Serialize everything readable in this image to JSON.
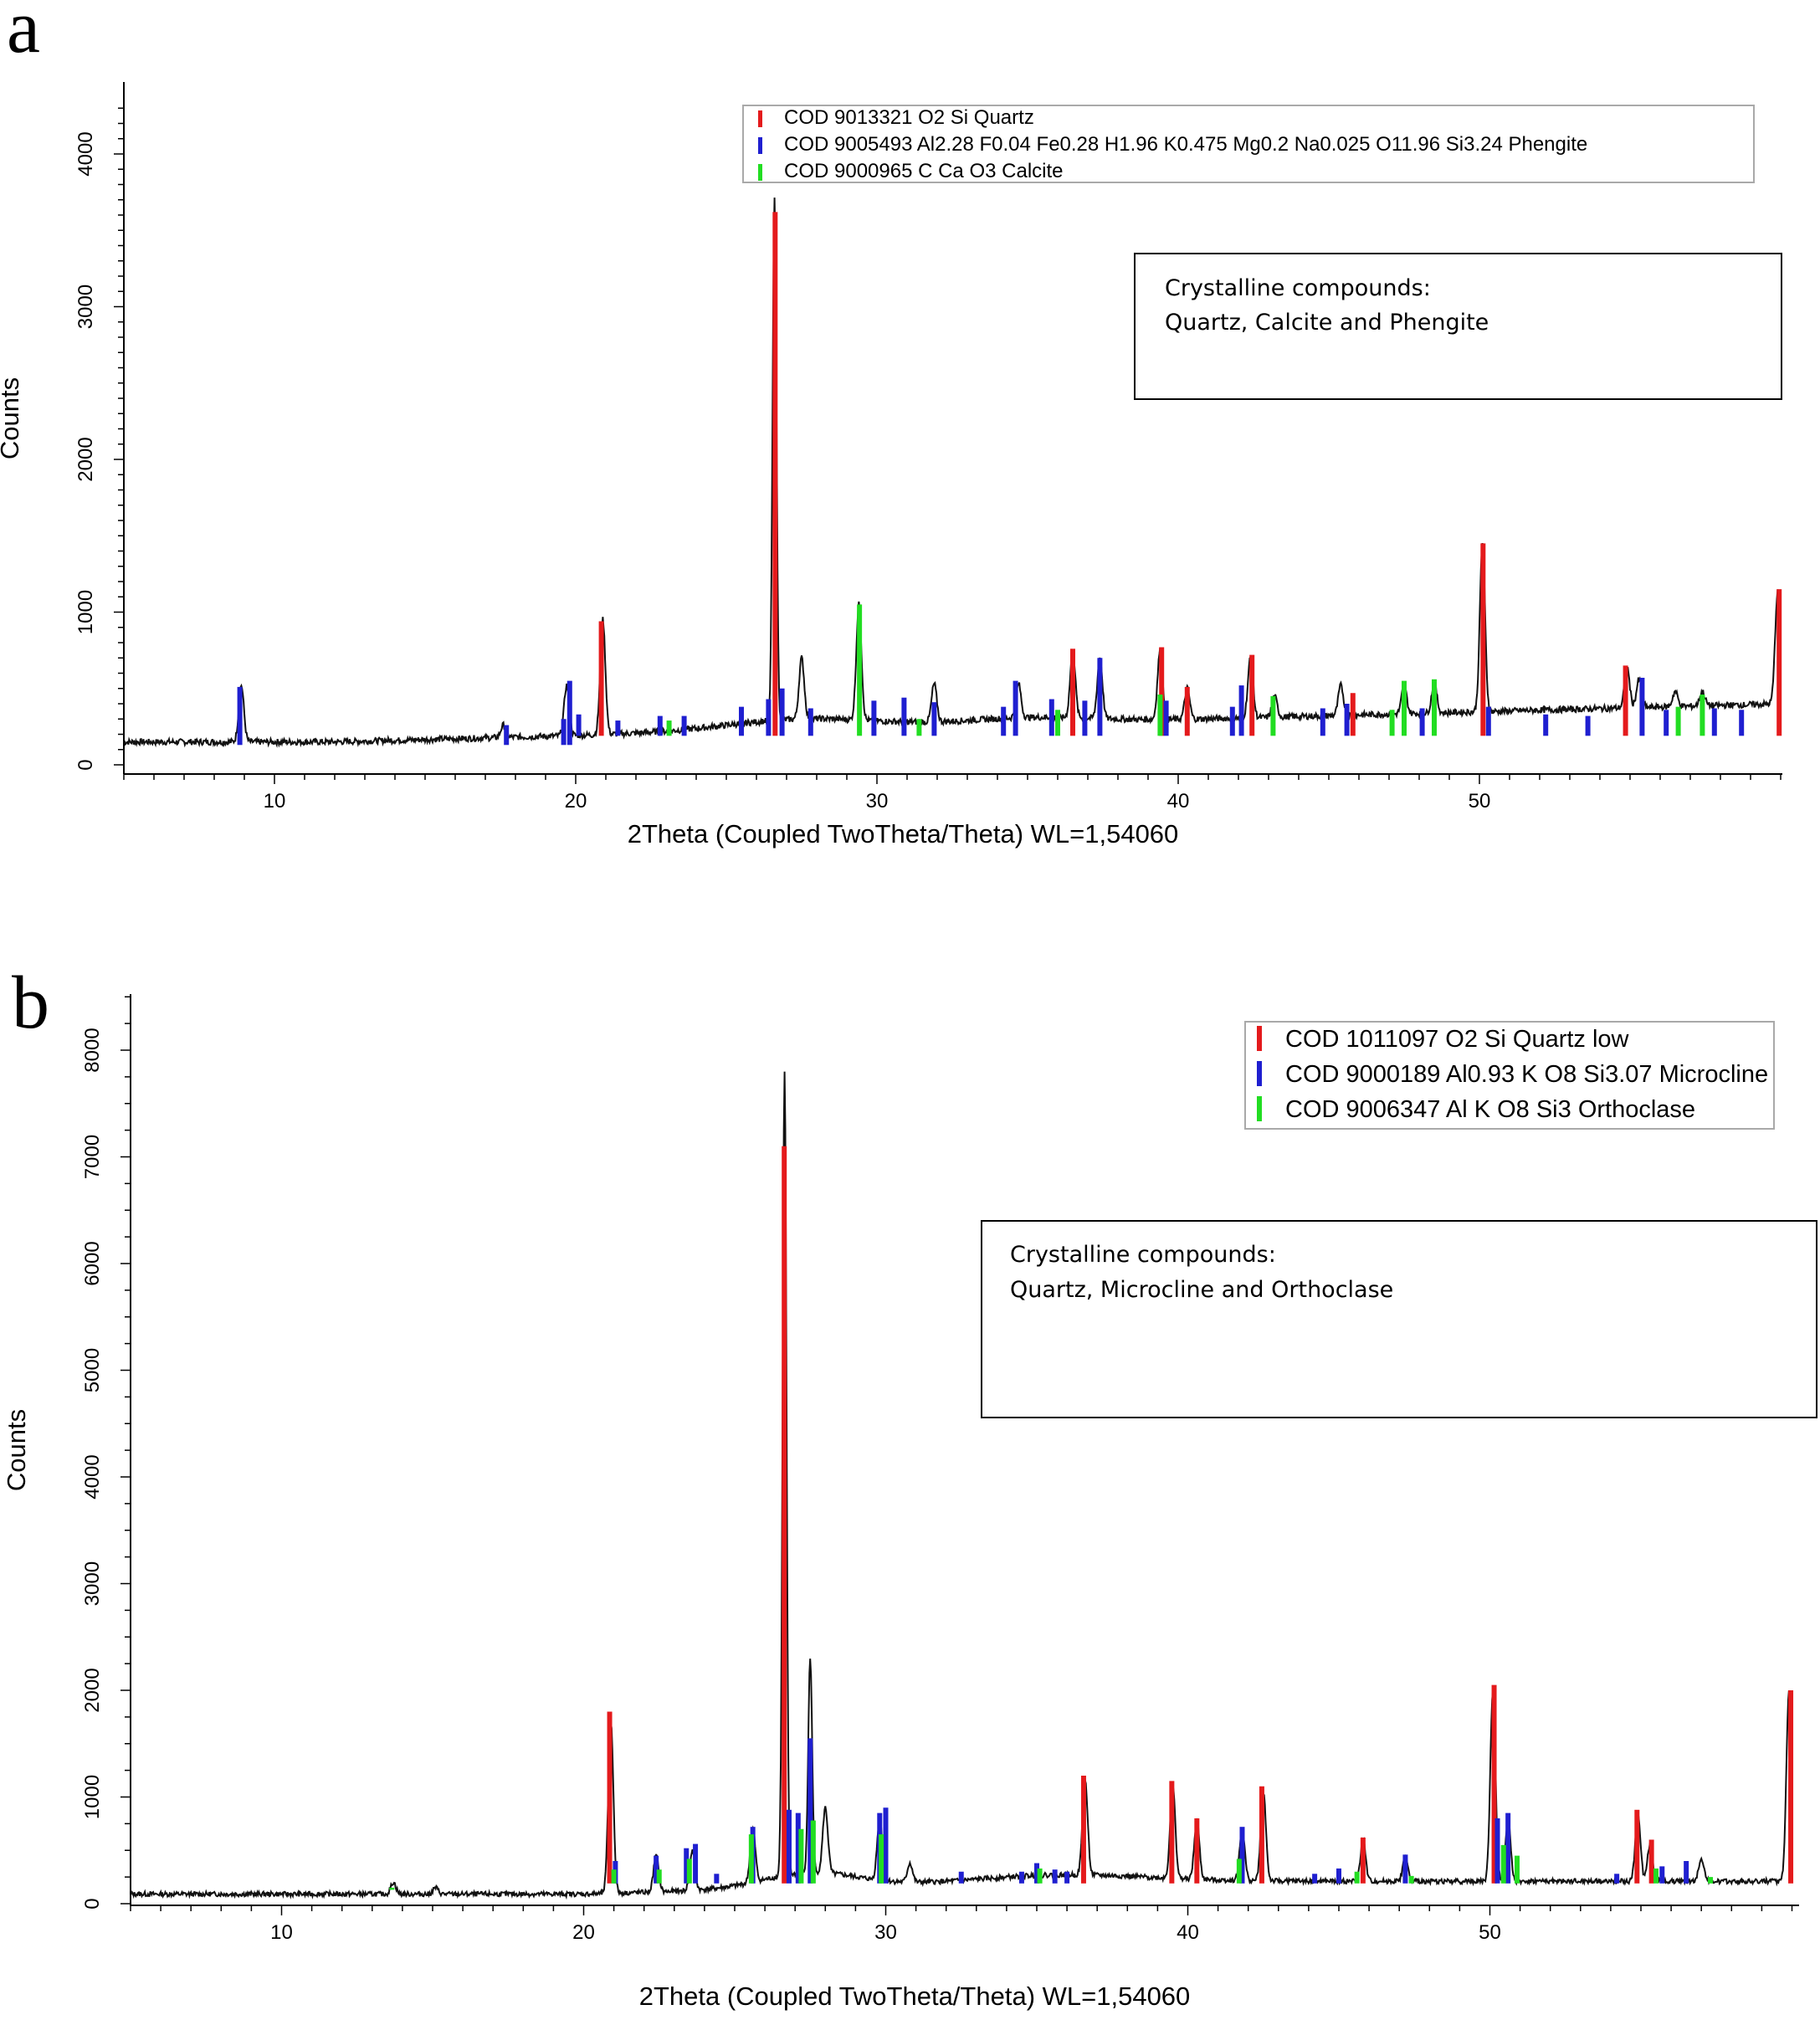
{
  "figure": {
    "panels": [
      {
        "letter": "a",
        "legend": [
          {
            "label": "COD 9013321 O2 Si Quartz",
            "color": "#e41a1c"
          },
          {
            "label": "COD 9005493 Al2.28 F0.04 Fe0.28 H1.96 K0.475 Mg0.2 Na0.025 O11.96 Si3.24 Phengite",
            "color": "#1f1fd0"
          },
          {
            "label": "COD 9000965 C Ca O3 Calcite",
            "color": "#22dd22"
          }
        ],
        "note": [
          "Crystalline compounds:",
          "Quartz, Calcite and Phengite"
        ]
      },
      {
        "letter": "b",
        "legend": [
          {
            "label": "COD 1011097 O2 Si Quartz low",
            "color": "#e41a1c"
          },
          {
            "label": "COD 9000189 Al0.93 K O8 Si3.07 Microcline",
            "color": "#1f1fd0"
          },
          {
            "label": "COD 9006347 Al K O8 Si3 Orthoclase",
            "color": "#22dd22"
          }
        ],
        "note": [
          "Crystalline compounds:",
          "Quartz, Microcline and Orthoclase"
        ]
      }
    ]
  },
  "chart_data": [
    {
      "type": "line",
      "xlabel": "2Theta (Coupled TwoTheta/Theta) WL=1,54060",
      "ylabel": "Counts",
      "xlim": [
        5,
        60
      ],
      "ylim": [
        0,
        4300
      ],
      "xticks": [
        10,
        20,
        30,
        40,
        50
      ],
      "yticks": [
        0,
        1000,
        2000,
        3000,
        4000
      ],
      "grid": false,
      "legend_position": "top-right",
      "pattern_peaks": [
        [
          8.9,
          520
        ],
        [
          17.6,
          260
        ],
        [
          19.7,
          520
        ],
        [
          20.9,
          950
        ],
        [
          26.6,
          3700
        ],
        [
          27.5,
          700
        ],
        [
          29.4,
          1050
        ],
        [
          31.9,
          530
        ],
        [
          34.7,
          530
        ],
        [
          36.5,
          750
        ],
        [
          37.4,
          700
        ],
        [
          39.4,
          750
        ],
        [
          40.3,
          500
        ],
        [
          42.4,
          700
        ],
        [
          43.2,
          450
        ],
        [
          45.4,
          520
        ],
        [
          47.5,
          520
        ],
        [
          48.5,
          540
        ],
        [
          50.1,
          1450
        ],
        [
          54.9,
          640
        ],
        [
          55.3,
          560
        ],
        [
          56.5,
          480
        ],
        [
          57.4,
          480
        ],
        [
          59.9,
          1130
        ]
      ],
      "series": [
        {
          "name": "COD 9013321 O2 Si Quartz",
          "color": "#e41a1c",
          "sticks": [
            [
              20.85,
              940
            ],
            [
              26.62,
              3620
            ],
            [
              36.5,
              760
            ],
            [
              39.45,
              770
            ],
            [
              40.3,
              510
            ],
            [
              42.45,
              720
            ],
            [
              45.8,
              470
            ],
            [
              50.12,
              1450
            ],
            [
              54.85,
              650
            ],
            [
              59.95,
              1150
            ]
          ]
        },
        {
          "name": "COD 9005493 Al2.28 F0.04 Fe0.28 H1.96 K0.475 Mg0.2 Na0.025 O11.96 Si3.24 Phengite",
          "color": "#1f1fd0",
          "sticks": [
            [
              8.85,
              510
            ],
            [
              17.7,
              260
            ],
            [
              19.6,
              300
            ],
            [
              19.8,
              550
            ],
            [
              20.1,
              330
            ],
            [
              21.4,
              290
            ],
            [
              22.8,
              320
            ],
            [
              23.6,
              320
            ],
            [
              25.5,
              380
            ],
            [
              26.4,
              430
            ],
            [
              26.85,
              500
            ],
            [
              27.8,
              370
            ],
            [
              29.9,
              420
            ],
            [
              30.9,
              440
            ],
            [
              31.9,
              410
            ],
            [
              34.2,
              380
            ],
            [
              34.6,
              550
            ],
            [
              35.8,
              430
            ],
            [
              36.9,
              420
            ],
            [
              37.4,
              700
            ],
            [
              39.6,
              420
            ],
            [
              41.8,
              380
            ],
            [
              42.1,
              520
            ],
            [
              44.8,
              370
            ],
            [
              45.6,
              400
            ],
            [
              48.1,
              370
            ],
            [
              50.3,
              380
            ],
            [
              52.2,
              330
            ],
            [
              53.6,
              320
            ],
            [
              55.4,
              570
            ],
            [
              56.2,
              360
            ],
            [
              57.8,
              370
            ],
            [
              58.7,
              360
            ]
          ]
        },
        {
          "name": "COD 9000965 C Ca O3 Calcite",
          "color": "#22dd22",
          "sticks": [
            [
              23.1,
              290
            ],
            [
              29.42,
              1050
            ],
            [
              31.4,
              300
            ],
            [
              36.0,
              360
            ],
            [
              39.4,
              460
            ],
            [
              43.15,
              450
            ],
            [
              47.1,
              360
            ],
            [
              47.5,
              550
            ],
            [
              48.5,
              560
            ],
            [
              56.6,
              380
            ],
            [
              57.4,
              460
            ]
          ]
        }
      ]
    },
    {
      "type": "line",
      "xlabel": "2Theta (Coupled TwoTheta/Theta) WL=1,54060",
      "ylabel": "Counts",
      "xlim": [
        5,
        60
      ],
      "ylim": [
        0,
        8550
      ],
      "xticks": [
        10,
        20,
        30,
        40,
        50
      ],
      "yticks": [
        0,
        1000,
        2000,
        3000,
        4000,
        5000,
        6000,
        7000,
        8000
      ],
      "grid": false,
      "legend_position": "top-right",
      "pattern_peaks": [
        [
          13.7,
          200
        ],
        [
          15.1,
          150
        ],
        [
          20.9,
          1700
        ],
        [
          22.4,
          450
        ],
        [
          23.6,
          500
        ],
        [
          25.6,
          700
        ],
        [
          26.65,
          7800
        ],
        [
          27.5,
          2300
        ],
        [
          28.0,
          900
        ],
        [
          29.8,
          800
        ],
        [
          30.8,
          380
        ],
        [
          36.6,
          1150
        ],
        [
          39.5,
          1100
        ],
        [
          40.3,
          780
        ],
        [
          41.8,
          700
        ],
        [
          42.5,
          1050
        ],
        [
          45.8,
          600
        ],
        [
          47.2,
          430
        ],
        [
          50.1,
          2000
        ],
        [
          50.6,
          800
        ],
        [
          54.9,
          850
        ],
        [
          55.3,
          550
        ],
        [
          57.0,
          430
        ],
        [
          59.9,
          2000
        ]
      ],
      "series": [
        {
          "name": "COD 1011097 O2 Si Quartz low",
          "color": "#e41a1c",
          "sticks": [
            [
              20.86,
              1800
            ],
            [
              26.64,
              7100
            ],
            [
              36.55,
              1200
            ],
            [
              39.47,
              1150
            ],
            [
              40.3,
              800
            ],
            [
              42.45,
              1100
            ],
            [
              45.8,
              620
            ],
            [
              50.14,
              2050
            ],
            [
              54.87,
              880
            ],
            [
              55.35,
              600
            ],
            [
              59.96,
              2000
            ]
          ]
        },
        {
          "name": "COD 9000189 Al0.93 K O8 Si3.07 Microcline",
          "color": "#1f1fd0",
          "sticks": [
            [
              21.05,
              400
            ],
            [
              22.4,
              450
            ],
            [
              23.4,
              520
            ],
            [
              23.7,
              560
            ],
            [
              24.4,
              280
            ],
            [
              25.6,
              720
            ],
            [
              26.8,
              880
            ],
            [
              27.1,
              850
            ],
            [
              27.5,
              1550
            ],
            [
              29.8,
              850
            ],
            [
              30.0,
              900
            ],
            [
              32.5,
              300
            ],
            [
              34.5,
              300
            ],
            [
              35.0,
              380
            ],
            [
              35.6,
              320
            ],
            [
              36.0,
              300
            ],
            [
              41.8,
              720
            ],
            [
              44.2,
              280
            ],
            [
              45.0,
              330
            ],
            [
              47.2,
              460
            ],
            [
              50.25,
              800
            ],
            [
              50.6,
              850
            ],
            [
              54.2,
              280
            ],
            [
              55.7,
              350
            ],
            [
              56.5,
              400
            ]
          ]
        },
        {
          "name": "COD 9006347 Al K O8 Si3 Orthoclase",
          "color": "#22dd22",
          "sticks": [
            [
              13.65,
              150
            ],
            [
              21.0,
              320
            ],
            [
              22.5,
              320
            ],
            [
              23.5,
              420
            ],
            [
              25.55,
              650
            ],
            [
              27.2,
              700
            ],
            [
              27.6,
              780
            ],
            [
              29.85,
              650
            ],
            [
              35.1,
              330
            ],
            [
              41.7,
              420
            ],
            [
              45.6,
              300
            ],
            [
              47.4,
              260
            ],
            [
              50.45,
              550
            ],
            [
              50.9,
              450
            ],
            [
              55.5,
              330
            ],
            [
              57.3,
              250
            ]
          ]
        }
      ]
    }
  ]
}
